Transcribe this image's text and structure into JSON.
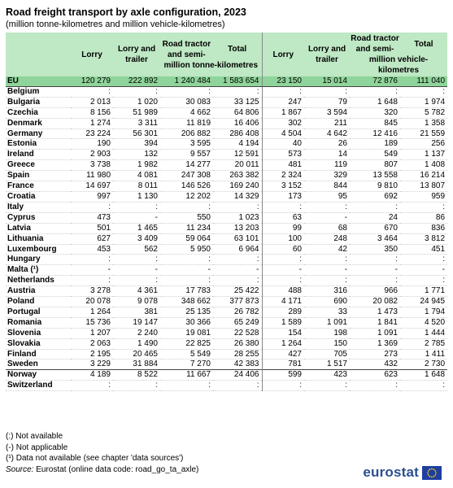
{
  "title": "Road freight transport by axle configuration, 2023",
  "subtitle": "(million tonne-kilometres and million vehicle-kilometres)",
  "headers": {
    "lorry": "Lorry",
    "lorry_trailer": "Lorry and trailer",
    "road_tractor": "Road tractor and semi-",
    "total": "Total",
    "unit_tkm": "million tonne-kilometres",
    "unit_vkm": "million vehicle-kilometres"
  },
  "rows": [
    {
      "country": "EU",
      "v": [
        "120 279",
        "222 892",
        "1 240 484",
        "1 583 654",
        "23 150",
        "15 014",
        "72 876",
        "111 040"
      ]
    },
    {
      "country": "Belgium",
      "v": [
        ":",
        ":",
        ":",
        ":",
        ":",
        ":",
        ":",
        ":"
      ]
    },
    {
      "country": "Bulgaria",
      "v": [
        "2 013",
        "1 020",
        "30 083",
        "33 125",
        "247",
        "79",
        "1 648",
        "1 974"
      ]
    },
    {
      "country": "Czechia",
      "v": [
        "8 156",
        "51 989",
        "4 662",
        "64 806",
        "1 867",
        "3 594",
        "320",
        "5 782"
      ]
    },
    {
      "country": "Denmark",
      "v": [
        "1 274",
        "3 311",
        "11 819",
        "16 406",
        "302",
        "211",
        "845",
        "1 358"
      ]
    },
    {
      "country": "Germany",
      "v": [
        "23 224",
        "56 301",
        "206 882",
        "286 408",
        "4 504",
        "4 642",
        "12 416",
        "21 559"
      ]
    },
    {
      "country": "Estonia",
      "v": [
        "190",
        "394",
        "3 595",
        "4 194",
        "40",
        "26",
        "189",
        "256"
      ]
    },
    {
      "country": "Ireland",
      "v": [
        "2 903",
        "132",
        "9 557",
        "12 591",
        "573",
        "14",
        "549",
        "1 137"
      ]
    },
    {
      "country": "Greece",
      "v": [
        "3 738",
        "1 982",
        "14 277",
        "20 011",
        "481",
        "119",
        "807",
        "1 408"
      ]
    },
    {
      "country": "Spain",
      "v": [
        "11 980",
        "4 081",
        "247 308",
        "263 382",
        "2 324",
        "329",
        "13 558",
        "16 214"
      ]
    },
    {
      "country": "France",
      "v": [
        "14 697",
        "8 011",
        "146 526",
        "169 240",
        "3 152",
        "844",
        "9 810",
        "13 807"
      ]
    },
    {
      "country": "Croatia",
      "v": [
        "997",
        "1 130",
        "12 202",
        "14 329",
        "173",
        "95",
        "692",
        "959"
      ]
    },
    {
      "country": "Italy",
      "v": [
        ":",
        ":",
        ":",
        ":",
        ":",
        ":",
        ":",
        ":"
      ]
    },
    {
      "country": "Cyprus",
      "v": [
        "473",
        "-",
        "550",
        "1 023",
        "63",
        "-",
        "24",
        "86"
      ]
    },
    {
      "country": "Latvia",
      "v": [
        "501",
        "1 465",
        "11 234",
        "13 203",
        "99",
        "68",
        "670",
        "836"
      ]
    },
    {
      "country": "Lithuania",
      "v": [
        "627",
        "3 409",
        "59 064",
        "63 101",
        "100",
        "248",
        "3 464",
        "3 812"
      ]
    },
    {
      "country": "Luxembourg",
      "v": [
        "453",
        "562",
        "5 950",
        "6 964",
        "60",
        "42",
        "350",
        "451"
      ]
    },
    {
      "country": "Hungary",
      "v": [
        ":",
        ":",
        ":",
        ":",
        ":",
        ":",
        ":",
        ":"
      ]
    },
    {
      "country": "Malta (¹)",
      "v": [
        "-",
        "-",
        "-",
        "-",
        "-",
        "-",
        "-",
        "-"
      ]
    },
    {
      "country": "Netherlands",
      "v": [
        ":",
        ":",
        ":",
        ":",
        ":",
        ":",
        ":",
        ":"
      ]
    },
    {
      "country": "Austria",
      "v": [
        "3 278",
        "4 361",
        "17 783",
        "25 422",
        "488",
        "316",
        "966",
        "1 771"
      ]
    },
    {
      "country": "Poland",
      "v": [
        "20 078",
        "9 078",
        "348 662",
        "377 873",
        "4 171",
        "690",
        "20 082",
        "24 945"
      ]
    },
    {
      "country": "Portugal",
      "v": [
        "1 264",
        "381",
        "25 135",
        "26 782",
        "289",
        "33",
        "1 473",
        "1 794"
      ]
    },
    {
      "country": "Romania",
      "v": [
        "15 736",
        "19 147",
        "30 366",
        "65 249",
        "1 589",
        "1 091",
        "1 841",
        "4 520"
      ]
    },
    {
      "country": "Slovenia",
      "v": [
        "1 207",
        "2 240",
        "19 081",
        "22 528",
        "154",
        "198",
        "1 091",
        "1 444"
      ]
    },
    {
      "country": "Slovakia",
      "v": [
        "2 063",
        "1 490",
        "22 825",
        "26 380",
        "1 264",
        "150",
        "1 369",
        "2 785"
      ]
    },
    {
      "country": "Finland",
      "v": [
        "2 195",
        "20 465",
        "5 549",
        "28 255",
        "427",
        "705",
        "273",
        "1 411"
      ]
    },
    {
      "country": "Sweden",
      "v": [
        "3 229",
        "31 884",
        "7 270",
        "42 383",
        "781",
        "1 517",
        "432",
        "2 730"
      ]
    },
    {
      "country": "Norway",
      "v": [
        "4 189",
        "8 522",
        "11 667",
        "24 406",
        "599",
        "423",
        "623",
        "1 648"
      ]
    },
    {
      "country": "Switzerland",
      "v": [
        ":",
        ":",
        ":",
        ":",
        ":",
        ":",
        ":",
        ":"
      ]
    }
  ],
  "notes": {
    "not_available": "(:) Not available",
    "not_applicable": "(-) Not applicable",
    "footnote": "(¹) Data not available (see chapter 'data sources')",
    "source_label": "Source:",
    "source_text": " Eurostat (online data code: road_go_ta_axle)"
  },
  "logo": {
    "text": "eurostat",
    "colors": {
      "text": "#2a4f8f",
      "flag": "#1f3fa0",
      "stars": "#ffdd00"
    }
  }
}
